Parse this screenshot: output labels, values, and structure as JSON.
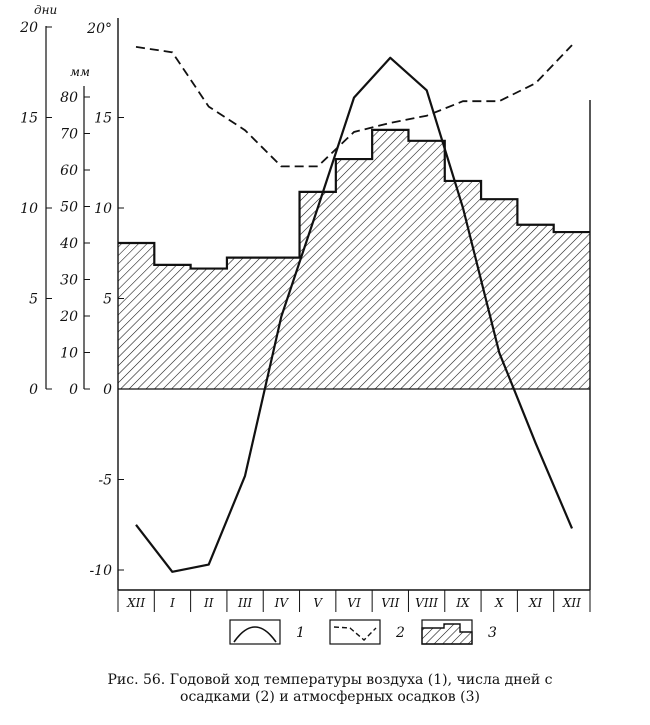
{
  "chart_data": {
    "type": "line",
    "categories": [
      "XII",
      "I",
      "II",
      "III",
      "IV",
      "V",
      "VI",
      "VII",
      "VIII",
      "IX",
      "X",
      "XI",
      "XII"
    ],
    "axes": {
      "days": {
        "label": "дни",
        "ticks": [
          "20",
          "15",
          "10",
          "5",
          "0"
        ],
        "range": [
          0,
          20
        ]
      },
      "precip": {
        "label": "мм",
        "ticks": [
          "80",
          "70",
          "60",
          "50",
          "40",
          "30",
          "20",
          "10",
          "0"
        ],
        "range": [
          0,
          80
        ]
      },
      "temp": {
        "label": "20°",
        "ticks": [
          "15",
          "10",
          "5",
          "0",
          "-5",
          "-10"
        ],
        "range": [
          -11,
          20
        ]
      }
    },
    "series": [
      {
        "name": "1",
        "style": "solid",
        "values": [
          -7.5,
          -10.1,
          -9.7,
          -4.8,
          4.0,
          10.0,
          16.1,
          18.3,
          16.5,
          10.0,
          2.0,
          -3.0,
          -7.7
        ]
      },
      {
        "name": "2",
        "style": "dashed",
        "values": [
          18.9,
          18.6,
          15.6,
          14.3,
          12.3,
          12.3,
          14.2,
          14.7,
          15.1,
          15.9,
          15.9,
          16.9,
          19.0
        ]
      },
      {
        "name": "3",
        "style": "hatched-step",
        "months": [
          "XII",
          "I",
          "II",
          "III",
          "IV",
          "V",
          "VI",
          "VII",
          "VIII",
          "IX",
          "X",
          "XI",
          "XII"
        ],
        "values": [
          40,
          34,
          33,
          36,
          36,
          54,
          63,
          71,
          68,
          57,
          52,
          45,
          43
        ]
      }
    ],
    "legend": [
      "1",
      "2",
      "3"
    ]
  },
  "caption": {
    "line1": "Рис. 56. Годовой ход температуры воздуха (1), числа дней с",
    "line2": "осадками (2) и атмосферных осадков (3)"
  }
}
